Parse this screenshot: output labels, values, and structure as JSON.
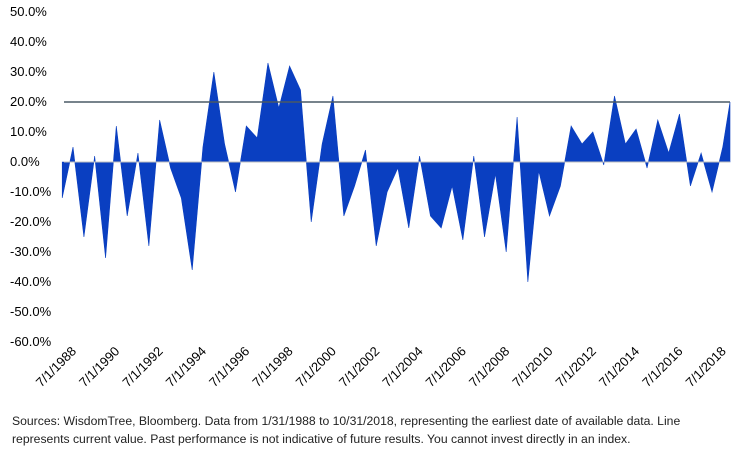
{
  "chart_data": {
    "type": "area",
    "title": "",
    "xlabel": "",
    "ylabel": "",
    "x_start": "1/31/1988",
    "x_end": "10/31/2018",
    "xlim": [
      "1/31/1988",
      "10/31/2018"
    ],
    "ylim": [
      -60,
      50
    ],
    "y_ticks": [
      50,
      40,
      30,
      20,
      10,
      0,
      -10,
      -20,
      -30,
      -40,
      -50,
      -60
    ],
    "y_tick_labels": [
      "50.0%",
      "40.0%",
      "30.0%",
      "20.0%",
      "10.0%",
      "0.0%",
      "-10.0%",
      "-20.0%",
      "-30.0%",
      "-40.0%",
      "-50.0%",
      "-60.0%"
    ],
    "x_ticks": [
      "7/1/1988",
      "7/1/1990",
      "7/1/1992",
      "7/1/1994",
      "7/1/1996",
      "7/1/1998",
      "7/1/2000",
      "7/1/2002",
      "7/1/2004",
      "7/1/2006",
      "7/1/2008",
      "7/1/2010",
      "7/1/2012",
      "7/1/2014",
      "7/1/2016",
      "7/1/2018"
    ],
    "x_tick_labels": [
      "7/1/1988",
      "7/1/1990",
      "7/1/1992",
      "7/1/1994",
      "7/1/1996",
      "7/1/1998",
      "7/1/2000",
      "7/1/2002",
      "7/1/2004",
      "7/1/2006",
      "7/1/2008",
      "7/1/2010",
      "7/1/2012",
      "7/1/2014",
      "7/1/2016",
      "7/1/2018"
    ],
    "reference_line": {
      "value": 20
    },
    "grid": false,
    "legend": "none",
    "colors": {
      "area": "#0a3fc1",
      "reference_line": "#4a5a66",
      "axis": "#bfbfbf"
    },
    "series": [
      {
        "x": [
          "1/1/1988",
          "7/1/1988",
          "1/1/1989",
          "7/1/1989",
          "1/1/1990",
          "7/1/1990",
          "1/1/1991",
          "7/1/1991",
          "1/1/1992",
          "7/1/1992",
          "1/1/1993",
          "7/1/1993",
          "1/1/1994",
          "7/1/1994",
          "1/1/1995",
          "7/1/1995",
          "1/1/1996",
          "7/1/1996",
          "1/1/1997",
          "7/1/1997",
          "1/1/1998",
          "7/1/1998",
          "1/1/1999",
          "7/1/1999",
          "1/1/2000",
          "7/1/2000",
          "1/1/2001",
          "7/1/2001",
          "1/1/2002",
          "7/1/2002",
          "1/1/2003",
          "7/1/2003",
          "1/1/2004",
          "7/1/2004",
          "1/1/2005",
          "7/1/2005",
          "1/1/2006",
          "7/1/2006",
          "1/1/2007",
          "7/1/2007",
          "1/1/2008",
          "7/1/2008",
          "1/1/2009",
          "7/1/2009",
          "1/1/2010",
          "7/1/2010",
          "1/1/2011",
          "7/1/2011",
          "1/1/2012",
          "7/1/2012",
          "1/1/2013",
          "7/1/2013",
          "1/1/2014",
          "7/1/2014",
          "1/1/2015",
          "7/1/2015",
          "1/1/2016",
          "7/1/2016",
          "1/1/2017",
          "7/1/2017",
          "1/1/2018",
          "7/1/2018",
          "10/31/2018"
        ],
        "values": [
          -12,
          5,
          -25,
          2,
          -32,
          12,
          -18,
          3,
          -28,
          14,
          -2,
          -12,
          -36,
          5,
          30,
          6,
          -10,
          12,
          8,
          33,
          18,
          32,
          24,
          -20,
          6,
          22,
          -18,
          -8,
          4,
          -28,
          -10,
          -2,
          -22,
          2,
          -18,
          -22,
          -8,
          -26,
          2,
          -25,
          -4,
          -30,
          15,
          -40,
          -3,
          -18,
          -8,
          12,
          6,
          10,
          -1,
          22,
          6,
          11,
          -2,
          14,
          3,
          16,
          -8,
          3,
          -10,
          5,
          20
        ]
      }
    ]
  },
  "caption": {
    "line1": "Sources: WisdomTree, Bloomberg. Data from 1/31/1988 to 10/31/2018, representing the earliest date of available data. Line",
    "line2": "represents current value. Past performance is not indicative of future results. You cannot invest directly in an index."
  }
}
